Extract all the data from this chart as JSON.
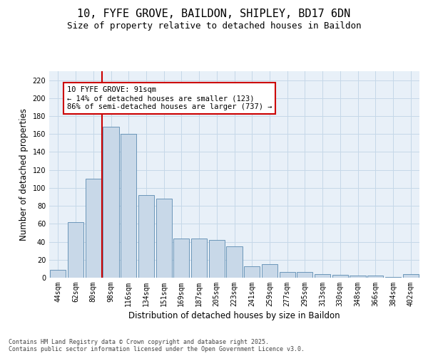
{
  "title_line1": "10, FYFE GROVE, BAILDON, SHIPLEY, BD17 6DN",
  "title_line2": "Size of property relative to detached houses in Baildon",
  "xlabel": "Distribution of detached houses by size in Baildon",
  "ylabel": "Number of detached properties",
  "categories": [
    "44sqm",
    "62sqm",
    "80sqm",
    "98sqm",
    "116sqm",
    "134sqm",
    "151sqm",
    "169sqm",
    "187sqm",
    "205sqm",
    "223sqm",
    "241sqm",
    "259sqm",
    "277sqm",
    "295sqm",
    "313sqm",
    "330sqm",
    "348sqm",
    "366sqm",
    "384sqm",
    "402sqm"
  ],
  "values": [
    9,
    62,
    110,
    168,
    160,
    92,
    88,
    44,
    44,
    42,
    35,
    13,
    15,
    6,
    6,
    4,
    3,
    2,
    2,
    1,
    4
  ],
  "bar_color": "#c8d8e8",
  "bar_edge_color": "#5a8ab0",
  "vline_x": 2.5,
  "vline_color": "#cc0000",
  "annotation_text": "10 FYFE GROVE: 91sqm\n← 14% of detached houses are smaller (123)\n86% of semi-detached houses are larger (737) →",
  "annotation_box_color": "#ffffff",
  "annotation_box_edge": "#cc0000",
  "ylim": [
    0,
    230
  ],
  "yticks": [
    0,
    20,
    40,
    60,
    80,
    100,
    120,
    140,
    160,
    180,
    200,
    220
  ],
  "grid_color": "#c5d8e8",
  "background_color": "#e8f0f8",
  "footer_text": "Contains HM Land Registry data © Crown copyright and database right 2025.\nContains public sector information licensed under the Open Government Licence v3.0.",
  "title_fontsize": 11,
  "subtitle_fontsize": 9,
  "tick_fontsize": 7,
  "label_fontsize": 8.5,
  "annotation_fontsize": 7.5,
  "footer_fontsize": 6
}
